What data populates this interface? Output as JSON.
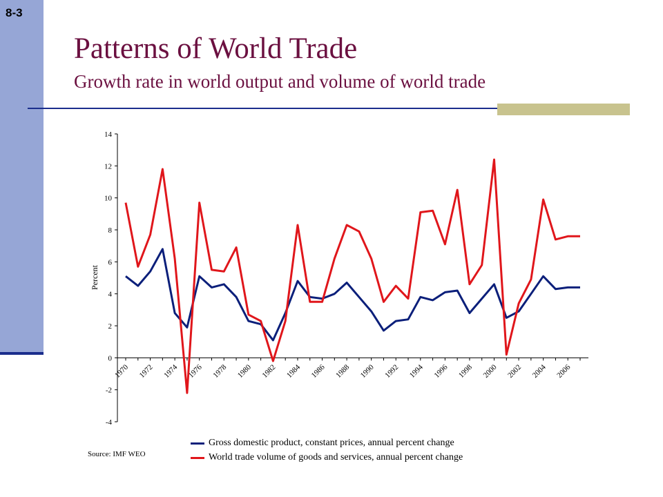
{
  "slide": {
    "number": "8-3",
    "title": "Patterns of World Trade",
    "subtitle": "Growth rate in world output and volume of world trade"
  },
  "source_note": "Source: IMF WEO",
  "colors": {
    "title": "#6b1040",
    "sidebar": "#96a6d6",
    "rule": "#1a2d8c",
    "accent": "#c8c38e"
  },
  "chart_data": {
    "type": "line",
    "ylabel": "Percent",
    "xlabel": "",
    "ylim": [
      -4,
      14
    ],
    "yticks": [
      -4,
      -2,
      0,
      2,
      4,
      6,
      8,
      10,
      12,
      14
    ],
    "x": [
      1970,
      1971,
      1972,
      1973,
      1974,
      1975,
      1976,
      1977,
      1978,
      1979,
      1980,
      1981,
      1982,
      1983,
      1984,
      1985,
      1986,
      1987,
      1988,
      1989,
      1990,
      1991,
      1992,
      1993,
      1994,
      1995,
      1996,
      1997,
      1998,
      1999,
      2000,
      2001,
      2002,
      2003,
      2004,
      2005,
      2006,
      2007
    ],
    "xtick_labels": [
      "1970",
      "1972",
      "1974",
      "1976",
      "1978",
      "1980",
      "1982",
      "1984",
      "1986",
      "1988",
      "1990",
      "1992",
      "1994",
      "1996",
      "1998",
      "2000",
      "2002",
      "2004",
      "2006"
    ],
    "legend_position": "bottom",
    "grid": false,
    "series": [
      {
        "name": "Gross domestic product, constant prices, annual percent change",
        "color": "#0b1f7a",
        "values": [
          5.1,
          4.5,
          5.4,
          6.8,
          2.8,
          1.9,
          5.1,
          4.4,
          4.6,
          3.8,
          2.3,
          2.1,
          1.1,
          2.8,
          4.8,
          3.8,
          3.7,
          4.0,
          4.7,
          3.8,
          2.9,
          1.7,
          2.3,
          2.4,
          3.8,
          3.6,
          4.1,
          4.2,
          2.8,
          3.7,
          4.6,
          2.5,
          2.9,
          4.0,
          5.1,
          4.3,
          4.4,
          4.4
        ]
      },
      {
        "name": "World trade volume of goods and services, annual percent change",
        "color": "#e0161b",
        "values": [
          9.7,
          5.7,
          7.7,
          11.8,
          6.2,
          -2.2,
          9.7,
          5.5,
          5.4,
          6.9,
          2.7,
          2.3,
          -0.2,
          2.3,
          8.3,
          3.5,
          3.5,
          6.2,
          8.3,
          7.9,
          6.2,
          3.5,
          4.5,
          3.7,
          9.1,
          9.2,
          7.1,
          10.5,
          4.6,
          5.8,
          12.4,
          0.2,
          3.4,
          4.9,
          9.9,
          7.4,
          7.6,
          7.6
        ]
      }
    ]
  }
}
